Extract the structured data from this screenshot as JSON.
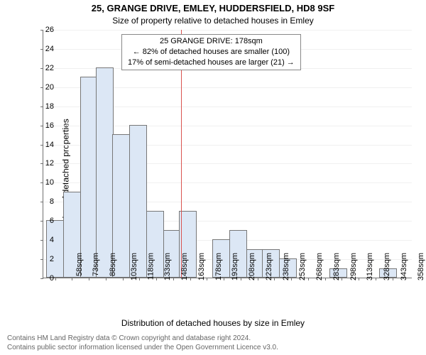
{
  "title": "25, GRANGE DRIVE, EMLEY, HUDDERSFIELD, HD8 9SF",
  "subtitle": "Size of property relative to detached houses in Emley",
  "ylabel": "Number of detached properties",
  "xlabel": "Distribution of detached houses by size in Emley",
  "footer_line1": "Contains HM Land Registry data © Crown copyright and database right 2024.",
  "footer_line2": "Contains public sector information licensed under the Open Government Licence v3.0.",
  "annot_line1": "25 GRANGE DRIVE: 178sqm",
  "annot_line2": "← 82% of detached houses are smaller (100)",
  "annot_line3": "17% of semi-detached houses are larger (21) →",
  "chart": {
    "type": "histogram",
    "ylim": [
      0,
      26
    ],
    "ytick_step": 2,
    "xtick_start": 58,
    "xtick_step": 15,
    "xtick_count": 21,
    "xtick_suffix": "sqm",
    "bar_color": "#dce7f5",
    "bar_border": "#777777",
    "marker_x": 178,
    "marker_color": "#d9534f",
    "grid_color": "#f0f0f0",
    "axis_color": "#707070",
    "bars": [
      {
        "x": 58,
        "h": 6
      },
      {
        "x": 73,
        "h": 9
      },
      {
        "x": 88,
        "h": 21
      },
      {
        "x": 102,
        "h": 22
      },
      {
        "x": 117,
        "h": 15
      },
      {
        "x": 132,
        "h": 16
      },
      {
        "x": 147,
        "h": 7
      },
      {
        "x": 162,
        "h": 5
      },
      {
        "x": 176,
        "h": 7
      },
      {
        "x": 191,
        "h": 0
      },
      {
        "x": 206,
        "h": 4
      },
      {
        "x": 221,
        "h": 5
      },
      {
        "x": 236,
        "h": 3
      },
      {
        "x": 250,
        "h": 3
      },
      {
        "x": 265,
        "h": 2
      },
      {
        "x": 280,
        "h": 0
      },
      {
        "x": 295,
        "h": 0
      },
      {
        "x": 310,
        "h": 1
      },
      {
        "x": 324,
        "h": 0
      },
      {
        "x": 339,
        "h": 0
      },
      {
        "x": 354,
        "h": 1
      }
    ],
    "background_color": "#ffffff",
    "title_fontsize": 13,
    "label_fontsize": 12,
    "tick_fontsize": 11
  }
}
